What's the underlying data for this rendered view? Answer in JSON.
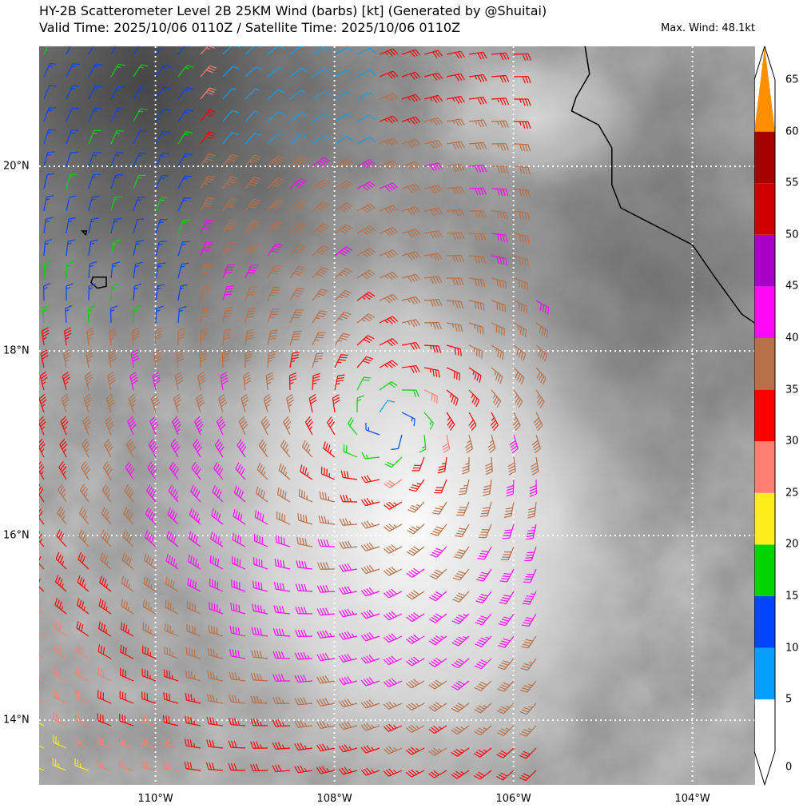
{
  "header": {
    "title_line1": "HY-2B Scatterometer Level 2B 25KM Wind (barbs) [kt] (Generated by @Shuitai)",
    "title_line2": "Valid Time: 2025/10/06 0110Z / Satellite Time: 2025/10/06 0110Z",
    "max_wind": "Max. Wind: 48.1kt"
  },
  "map": {
    "lon_range": [
      -111.3,
      -103.3
    ],
    "lat_range": [
      13.3,
      21.3
    ],
    "gridlines": "dotted white",
    "x_ticks": [
      {
        "lon": -110,
        "label": "110°W"
      },
      {
        "lon": -108,
        "label": "108°W"
      },
      {
        "lon": -106,
        "label": "106°W"
      },
      {
        "lon": -104,
        "label": "104°W"
      }
    ],
    "y_ticks": [
      {
        "lat": 20,
        "label": "20°N"
      },
      {
        "lat": 18,
        "label": "18°N"
      },
      {
        "lat": 16,
        "label": "16°N"
      },
      {
        "lat": 14,
        "label": "14°N"
      }
    ],
    "storm_center": {
      "lon": -107.4,
      "lat": 17.2
    },
    "coastline": [
      [
        -105.2,
        21.3
      ],
      [
        -105.15,
        21.0
      ],
      [
        -105.3,
        20.75
      ],
      [
        -105.35,
        20.6
      ],
      [
        -105.05,
        20.45
      ],
      [
        -104.9,
        20.2
      ],
      [
        -104.9,
        19.8
      ],
      [
        -104.8,
        19.55
      ],
      [
        -104.4,
        19.35
      ],
      [
        -104.0,
        19.15
      ],
      [
        -103.75,
        18.8
      ],
      [
        -103.45,
        18.4
      ],
      [
        -103.3,
        18.3
      ]
    ],
    "islands": [
      [
        [
          -110.7,
          18.8
        ],
        [
          -110.55,
          18.8
        ],
        [
          -110.55,
          18.7
        ],
        [
          -110.65,
          18.68
        ],
        [
          -110.72,
          18.74
        ]
      ],
      [
        [
          -110.82,
          19.3
        ],
        [
          -110.77,
          19.3
        ],
        [
          -110.78,
          19.26
        ]
      ]
    ]
  },
  "colorbar": {
    "labels": [
      "0",
      "5",
      "10",
      "15",
      "20",
      "25",
      "30",
      "35",
      "40",
      "45",
      "50",
      "55",
      "60",
      "65"
    ],
    "colors": [
      "#ffffff",
      "#03a0ff",
      "#0044ff",
      "#02d400",
      "#ffed1b",
      "#ff8070",
      "#fb0100",
      "#b77048",
      "#ff08f8",
      "#a700c6",
      "#cf0000",
      "#a70000",
      "#ff8e00"
    ]
  }
}
